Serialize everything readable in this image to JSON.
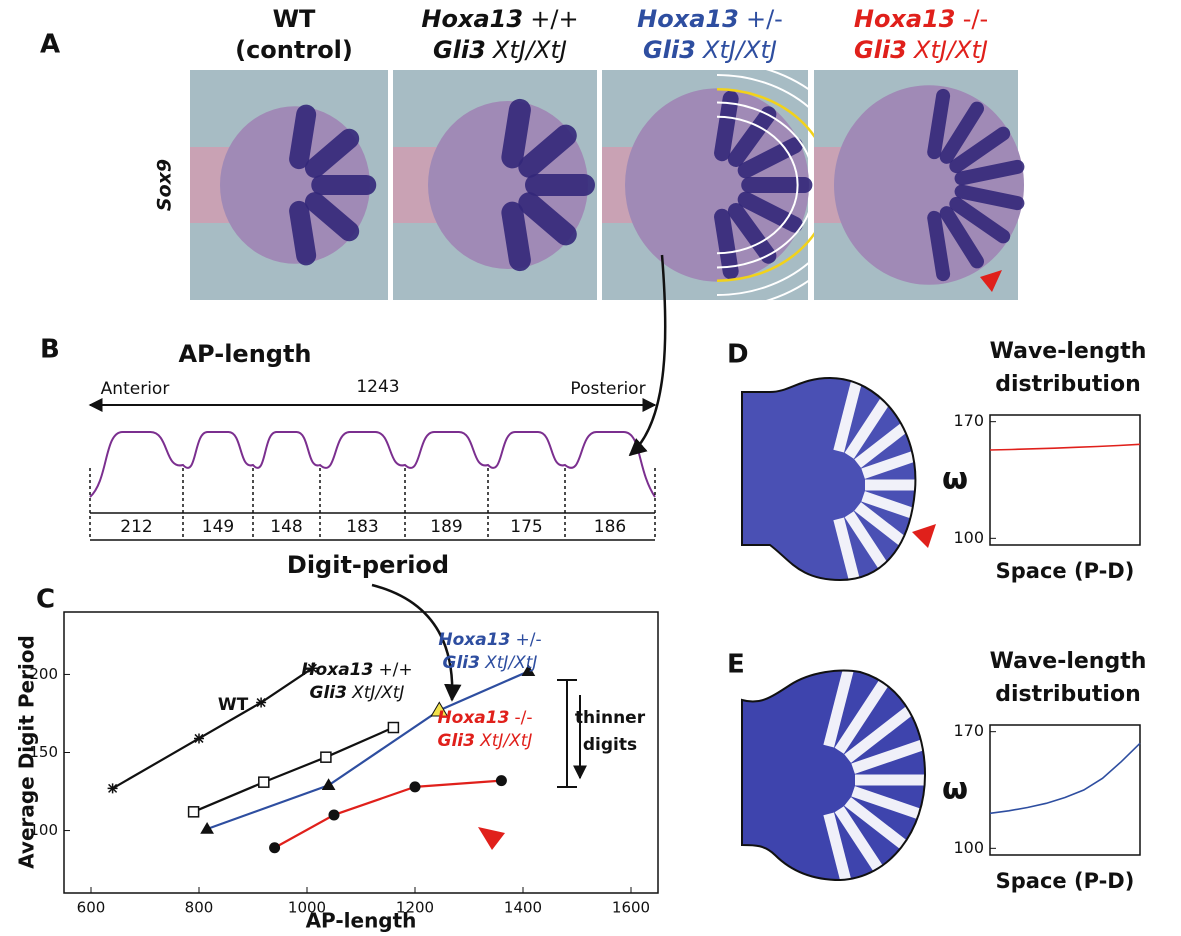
{
  "panel_labels": [
    "A",
    "B",
    "C",
    "D",
    "E"
  ],
  "panel_a": {
    "stain": "Sox9",
    "genotypes": [
      {
        "color": "#111111",
        "lines": [
          [
            "WT"
          ],
          [
            "(control)"
          ]
        ]
      },
      {
        "color": "#111111",
        "lines": [
          [
            "Hoxa13",
            "+/+"
          ],
          [
            "Gli3",
            "XtJ/XtJ"
          ]
        ]
      },
      {
        "color": "#2e4ea0",
        "lines": [
          [
            "Hoxa13",
            "+/-"
          ],
          [
            "Gli3",
            "XtJ/XtJ"
          ]
        ]
      },
      {
        "color": "#e0201b",
        "lines": [
          [
            "Hoxa13",
            "-/-"
          ],
          [
            "Gli3",
            "XtJ/XtJ"
          ]
        ]
      }
    ]
  },
  "panel_b": {
    "title": "AP-length",
    "anterior": "Anterior",
    "total": 1243,
    "posterior": "Posterior",
    "periods": [
      212,
      149,
      148,
      183,
      189,
      175,
      186
    ],
    "xlabel": "Digit-period",
    "color": "#7b2f8f"
  },
  "chart_data": [
    {
      "type": "line",
      "xlabel": "AP-length",
      "ylabel": "Average Digit Period",
      "xlim": [
        550,
        1650
      ],
      "ylim": [
        60,
        240
      ],
      "xticks": [
        600,
        800,
        1000,
        1200,
        1400,
        1600
      ],
      "yticks": [
        100,
        150,
        200
      ],
      "annotation": [
        "thinner",
        "digits"
      ],
      "series": [
        {
          "label_lines": [
            [
              "WT"
            ]
          ],
          "color": "#111111",
          "marker": "asterisk",
          "x": [
            640,
            800,
            915,
            1010
          ],
          "values": [
            127,
            159,
            182,
            204
          ]
        },
        {
          "label_lines": [
            [
              "Hoxa13",
              "+/+"
            ],
            [
              "Gli3",
              "XtJ/XtJ"
            ]
          ],
          "color": "#111111",
          "marker": "square",
          "x": [
            790,
            920,
            1035,
            1160
          ],
          "values": [
            112,
            131,
            147,
            166
          ]
        },
        {
          "label_lines": [
            [
              "Hoxa13",
              "+/-"
            ],
            [
              "Gli3",
              "XtJ/XtJ"
            ]
          ],
          "color": "#2e4ea0",
          "marker": "triangle",
          "highlight": {
            "index": 2,
            "color": "#f2e24a"
          },
          "x": [
            815,
            1040,
            1245,
            1410
          ],
          "values": [
            101,
            129,
            177,
            202
          ]
        },
        {
          "label_lines": [
            [
              "Hoxa13",
              "-/-"
            ],
            [
              "Gli3",
              "XtJ/XtJ"
            ]
          ],
          "color": "#e0201b",
          "marker": "circle",
          "x": [
            940,
            1050,
            1200,
            1360
          ],
          "values": [
            89,
            110,
            128,
            132
          ]
        }
      ]
    },
    {
      "type": "line",
      "title": [
        "Wave-length",
        "distribution"
      ],
      "xlabel": "Space (P-D)",
      "ylabel": "ω",
      "ylim": [
        96,
        174
      ],
      "yticks": [
        100,
        170
      ],
      "series": [
        {
          "color": "#e0201b",
          "values": [
            153,
            153.3,
            153.7,
            154.1,
            154.6,
            155.1,
            155.7,
            156.4
          ]
        }
      ]
    },
    {
      "type": "line",
      "title": [
        "Wave-length",
        "distribution"
      ],
      "xlabel": "Space (P-D)",
      "ylabel": "ω",
      "ylim": [
        96,
        174
      ],
      "yticks": [
        100,
        170
      ],
      "series": [
        {
          "color": "#2e4ea0",
          "values": [
            121,
            122.5,
            124.5,
            127,
            130.5,
            135,
            142,
            152,
            163
          ]
        }
      ]
    }
  ]
}
